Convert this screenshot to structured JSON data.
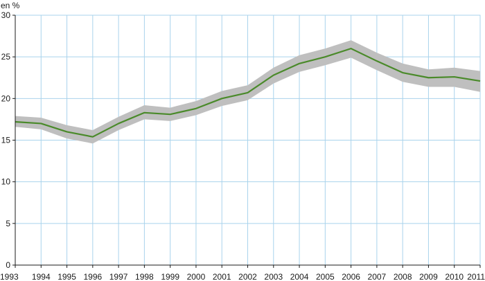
{
  "chart_data": {
    "type": "line",
    "ylabel": "en %",
    "xlabel": "",
    "x": [
      "1993",
      "1994",
      "1995",
      "1996",
      "1997",
      "1998",
      "1999",
      "2000",
      "2001",
      "2002",
      "2003",
      "2004",
      "2005",
      "2006",
      "2007",
      "2008",
      "2009",
      "2010",
      "2011"
    ],
    "yticks": [
      "0",
      "5",
      "10",
      "15",
      "20",
      "25",
      "30"
    ],
    "ylim": [
      0,
      30
    ],
    "grid": true,
    "series": [
      {
        "values": [
          17.2,
          17.0,
          16.0,
          15.4,
          17.0,
          18.3,
          18.1,
          18.8,
          20.0,
          20.7,
          22.8,
          24.2,
          25.0,
          26.0,
          24.5,
          23.1,
          22.5,
          22.6,
          22.1
        ],
        "band_lower": [
          16.6,
          16.3,
          15.2,
          14.6,
          16.2,
          17.5,
          17.3,
          18.0,
          19.1,
          19.8,
          21.8,
          23.2,
          24.0,
          24.9,
          23.4,
          22.0,
          21.4,
          21.4,
          20.8
        ],
        "band_upper": [
          17.9,
          17.7,
          16.8,
          16.2,
          17.8,
          19.2,
          18.9,
          19.7,
          20.9,
          21.6,
          23.7,
          25.2,
          26.0,
          27.0,
          25.5,
          24.2,
          23.5,
          23.7,
          23.3
        ]
      }
    ],
    "colors": {
      "line": "#4a8a2a",
      "band": "#bfbfbf",
      "grid": "#a9d3ec",
      "axis": "#1a1a1a"
    }
  }
}
